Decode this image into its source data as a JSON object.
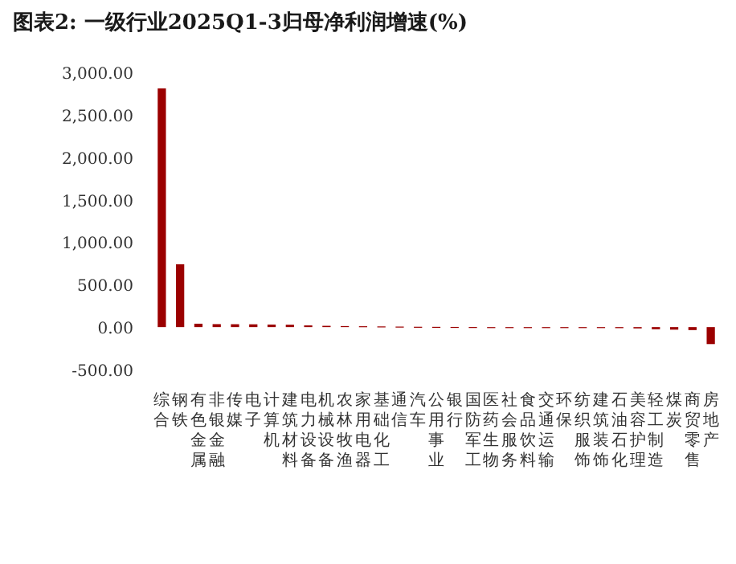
{
  "chart_data": {
    "type": "bar",
    "title": "图表2: 一级行业2025Q1-3归母净利润增速(%)",
    "categories": [
      "综合",
      "钢铁",
      "有色金属",
      "非银金融",
      "传媒",
      "电子",
      "计算机",
      "建筑材料",
      "电力设备",
      "机械设备",
      "农林牧渔",
      "家用电器",
      "基础化工",
      "通信",
      "汽车",
      "公用事业",
      "银行",
      "国防军工",
      "医药生物",
      "社会服务",
      "食品饮料",
      "交通运输",
      "环保",
      "纺织服饰",
      "建筑装饰",
      "石油石化",
      "美容护理",
      "轻工制造",
      "煤炭",
      "商贸零售",
      "房地产"
    ],
    "values": [
      2810,
      740,
      40,
      35,
      34,
      33,
      30,
      28,
      20,
      15,
      12,
      10,
      8,
      6,
      4,
      3,
      2,
      1,
      0,
      -1,
      -2,
      -3,
      -5,
      -7,
      -10,
      -12,
      -15,
      -25,
      -30,
      -35,
      -200
    ],
    "color": "#9b0000",
    "ylim": [
      -500,
      3000
    ],
    "yticks": [
      {
        "value": -500,
        "label": "-500.00"
      },
      {
        "value": 0,
        "label": "0.00"
      },
      {
        "value": 500,
        "label": "500.00"
      },
      {
        "value": 1000,
        "label": "1,000.00"
      },
      {
        "value": 1500,
        "label": "1,500.00"
      },
      {
        "value": 2000,
        "label": "2,000.00"
      },
      {
        "value": 2500,
        "label": "2,500.00"
      },
      {
        "value": 3000,
        "label": "3,000.00"
      }
    ]
  }
}
